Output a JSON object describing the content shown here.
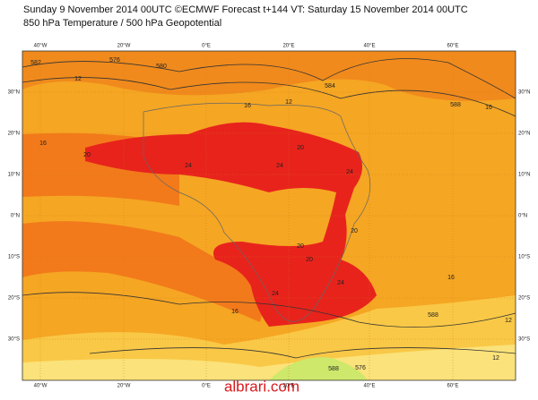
{
  "header": {
    "title": "Sunday 9 November 2014 00UTC ©ECMWF Forecast t+144 VT: Saturday 15 November 2014 00UTC",
    "subtitle": "850 hPa Temperature / 500 hPa Geopotential"
  },
  "map": {
    "lon_labels": [
      "40°W",
      "20°W",
      "0°E",
      "20°E",
      "40°E",
      "60°E"
    ],
    "lat_labels": [
      "30°N",
      "20°N",
      "10°N",
      "0°N",
      "10°S",
      "20°S",
      "30°S"
    ],
    "contour_labels": [
      "582",
      "576",
      "580",
      "12",
      "16",
      "20",
      "24",
      "20",
      "24",
      "24",
      "16",
      "12",
      "584",
      "588",
      "16",
      "20",
      "20",
      "20",
      "24",
      "24",
      "16",
      "16",
      "12",
      "12",
      "588",
      "588",
      "576"
    ]
  },
  "watermark": "albrari.com"
}
